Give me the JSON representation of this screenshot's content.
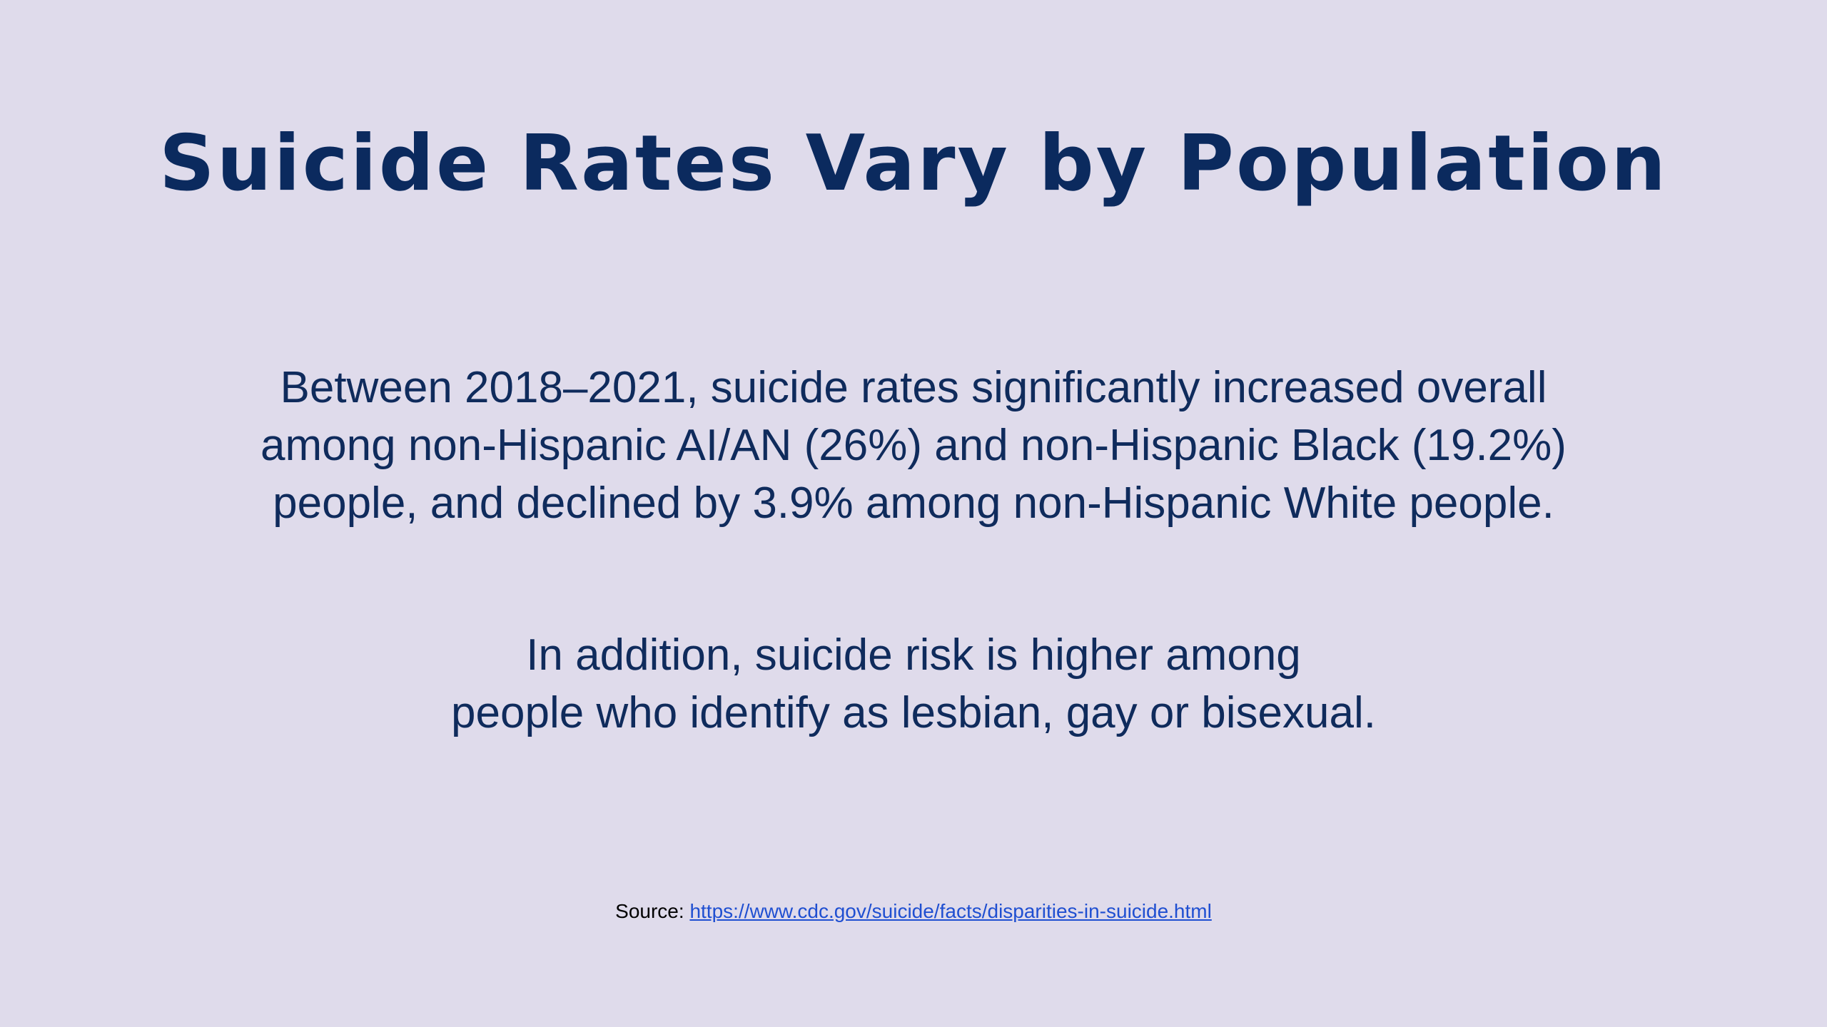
{
  "slide": {
    "title": "Suicide Rates Vary by Population",
    "paragraph1": {
      "lines": [
        "Between 2018–2021, suicide rates significantly increased overall",
        "among non-Hispanic AI/AN (26%) and non-Hispanic Black (19.2%)",
        "people, and declined by 3.9% among non-Hispanic White people."
      ]
    },
    "paragraph2": {
      "lines": [
        "In addition, suicide risk is higher among",
        "people who identify as lesbian, gay or bisexual."
      ]
    },
    "source": {
      "label": "Source: ",
      "link_text": "https://www.cdc.gov/suicide/facts/disparities-in-suicide.html"
    }
  },
  "colors": {
    "background": "#dfdbeb",
    "text": "#0b2a5e",
    "link": "#1f4fd1"
  }
}
